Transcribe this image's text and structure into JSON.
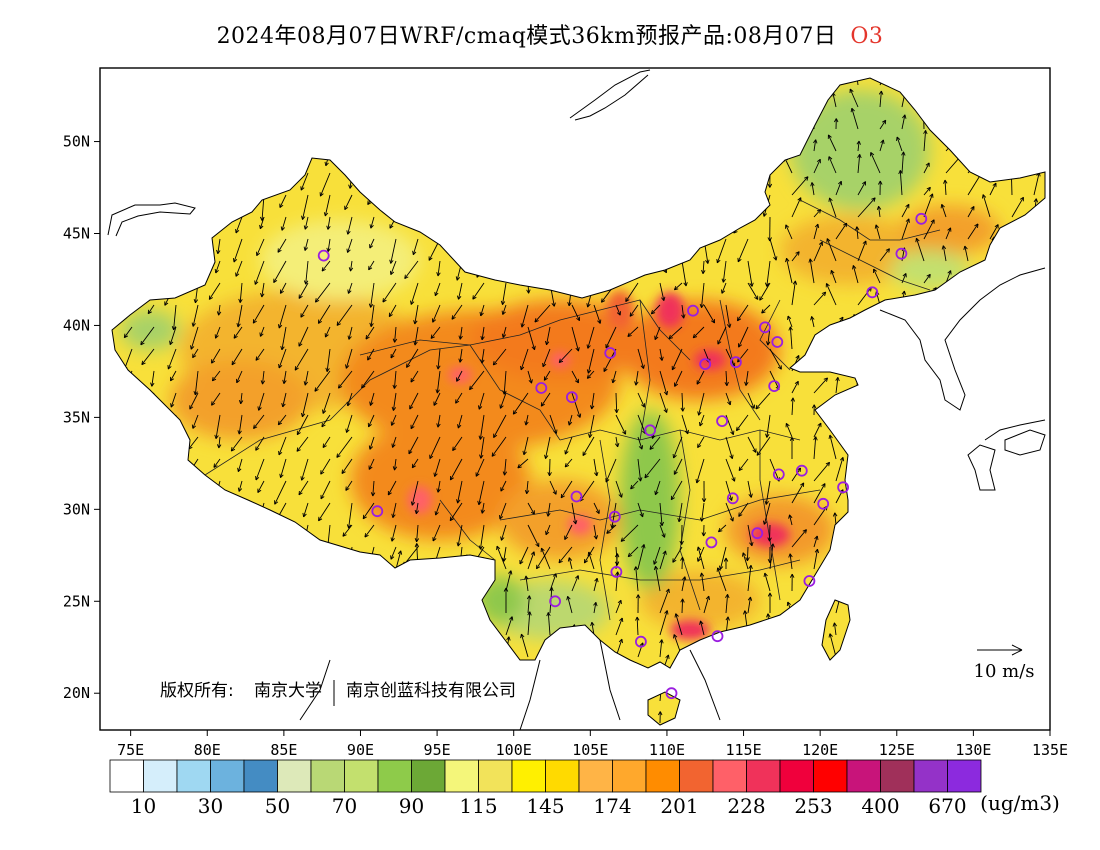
{
  "title": {
    "main": "2024年08月07日WRF/cmaq模式36km预报产品:08月07日",
    "species": "O3"
  },
  "credits": {
    "copyright_label": "版权所有:",
    "org1": "南京大学",
    "org2": "南京创蓝科技有限公司"
  },
  "wind_reference": {
    "label": "10 m/s"
  },
  "axes": {
    "x_ticks": [
      "75E",
      "80E",
      "85E",
      "90E",
      "95E",
      "100E",
      "105E",
      "110E",
      "115E",
      "120E",
      "125E",
      "130E",
      "135E"
    ],
    "y_ticks": [
      "50N",
      "45N",
      "40N",
      "35N",
      "30N",
      "25N",
      "20N"
    ],
    "lon_range": [
      73,
      135
    ],
    "lat_range": [
      18,
      54
    ]
  },
  "colorbar": {
    "unit": "(ug/m3)",
    "colors": [
      "#ffffff",
      "#d5eefb",
      "#9fd8f2",
      "#6cb2de",
      "#448cc3",
      "#dde9b9",
      "#b9d875",
      "#c3e06e",
      "#8ecb4a",
      "#6ca836",
      "#f4f67a",
      "#f2e35a",
      "#fff000",
      "#ffda00",
      "#ffb446",
      "#ffa82c",
      "#ff8c00",
      "#f26430",
      "#ff6068",
      "#f0325a",
      "#f0003c",
      "#ff0000",
      "#c8147a",
      "#a0305a",
      "#9432c8",
      "#8c2ade"
    ],
    "tick_labels": [
      "10",
      "30",
      "50",
      "70",
      "90",
      "115",
      "145",
      "174",
      "201",
      "228",
      "253",
      "400",
      "670"
    ]
  },
  "cities": [
    {
      "lon": 87.6,
      "lat": 43.8
    },
    {
      "lon": 91.1,
      "lat": 29.9
    },
    {
      "lon": 101.8,
      "lat": 36.6
    },
    {
      "lon": 103.8,
      "lat": 36.1
    },
    {
      "lon": 106.3,
      "lat": 38.5
    },
    {
      "lon": 111.7,
      "lat": 40.8
    },
    {
      "lon": 112.5,
      "lat": 37.9
    },
    {
      "lon": 114.5,
      "lat": 38.0
    },
    {
      "lon": 116.4,
      "lat": 39.9
    },
    {
      "lon": 117.2,
      "lat": 39.1
    },
    {
      "lon": 117.0,
      "lat": 36.7
    },
    {
      "lon": 113.6,
      "lat": 34.8
    },
    {
      "lon": 108.9,
      "lat": 34.3
    },
    {
      "lon": 104.1,
      "lat": 30.7
    },
    {
      "lon": 106.6,
      "lat": 29.6
    },
    {
      "lon": 106.7,
      "lat": 26.6
    },
    {
      "lon": 102.7,
      "lat": 25.0
    },
    {
      "lon": 108.3,
      "lat": 22.8
    },
    {
      "lon": 110.3,
      "lat": 20.0
    },
    {
      "lon": 113.3,
      "lat": 23.1
    },
    {
      "lon": 112.9,
      "lat": 28.2
    },
    {
      "lon": 114.3,
      "lat": 30.6
    },
    {
      "lon": 115.9,
      "lat": 28.7
    },
    {
      "lon": 117.3,
      "lat": 31.9
    },
    {
      "lon": 118.8,
      "lat": 32.1
    },
    {
      "lon": 120.2,
      "lat": 30.3
    },
    {
      "lon": 121.5,
      "lat": 31.2
    },
    {
      "lon": 119.3,
      "lat": 26.1
    },
    {
      "lon": 123.4,
      "lat": 41.8
    },
    {
      "lon": 125.3,
      "lat": 43.9
    },
    {
      "lon": 126.6,
      "lat": 45.8
    }
  ]
}
